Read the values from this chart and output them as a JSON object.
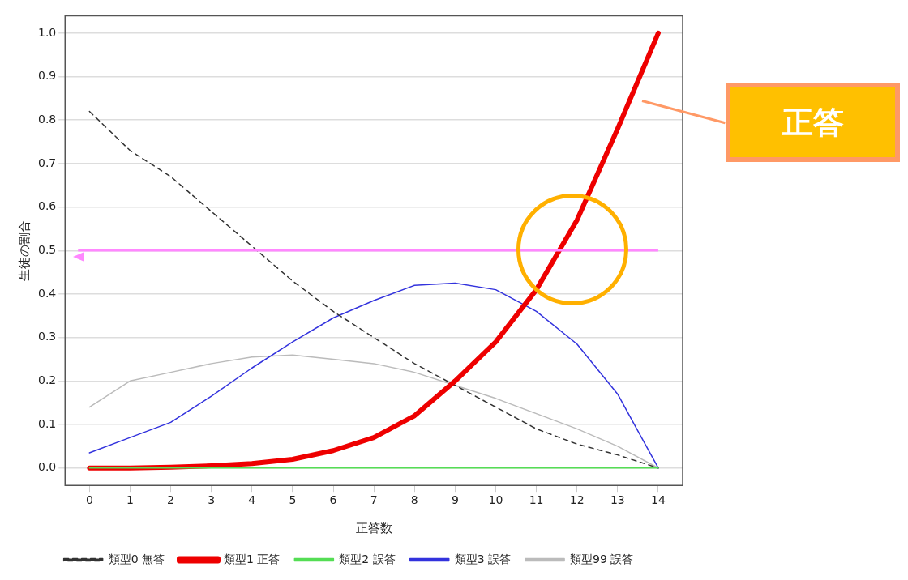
{
  "chart_data": {
    "type": "line",
    "xlabel": "正答数",
    "ylabel": "生徒の割合",
    "x": [
      0,
      1,
      2,
      3,
      4,
      5,
      6,
      7,
      8,
      9,
      10,
      11,
      12,
      13,
      14
    ],
    "xlim": [
      -0.6,
      14.6
    ],
    "xticks": [
      0,
      1,
      2,
      3,
      4,
      5,
      6,
      7,
      8,
      9,
      10,
      11,
      12,
      13,
      14
    ],
    "ylim": [
      -0.04,
      1.04
    ],
    "yticks": [
      {
        "value": 0,
        "label": "0.0"
      },
      {
        "value": 0.1,
        "label": "0.1"
      },
      {
        "value": 0.2,
        "label": "0.2"
      },
      {
        "value": 0.3,
        "label": "0.3"
      },
      {
        "value": 0.4,
        "label": "0.4"
      },
      {
        "value": 0.5,
        "label": "0.5"
      },
      {
        "value": 0.6,
        "label": "0.6"
      },
      {
        "value": 0.7,
        "label": "0.7"
      },
      {
        "value": 0.8,
        "label": "0.8"
      },
      {
        "value": 0.9,
        "label": "0.9"
      },
      {
        "value": 1,
        "label": "1.0"
      }
    ],
    "grid": "y",
    "legend": "bottom",
    "marker": "none",
    "series": [
      {
        "name": "類型0 無答",
        "color": "#333333",
        "line_style": "dashed",
        "values": [
          0.82,
          0.73,
          0.67,
          0.59,
          0.51,
          0.43,
          0.36,
          0.3,
          0.24,
          0.19,
          0.14,
          0.09,
          0.055,
          0.03,
          0
        ]
      },
      {
        "name": "類型1 正答",
        "color": "#ee0000",
        "values": [
          0,
          0,
          0.002,
          0.005,
          0.01,
          0.02,
          0.04,
          0.07,
          0.12,
          0.2,
          0.29,
          0.41,
          0.57,
          0.78,
          1
        ]
      },
      {
        "name": "類型2 誤答",
        "color": "#55dd55",
        "values": [
          0,
          0,
          0,
          0,
          0,
          0,
          0,
          0,
          0,
          0,
          0,
          0,
          0,
          0,
          0
        ]
      },
      {
        "name": "類型3 誤答",
        "color": "#3333dd",
        "values": [
          0.035,
          0.07,
          0.105,
          0.165,
          0.23,
          0.29,
          0.345,
          0.385,
          0.42,
          0.425,
          0.41,
          0.36,
          0.285,
          0.17,
          0
        ]
      },
      {
        "name": "類型99 誤答",
        "color": "#bbbbbb",
        "values": [
          0.14,
          0.2,
          0.22,
          0.24,
          0.255,
          0.26,
          0.25,
          0.24,
          0.22,
          0.19,
          0.16,
          0.125,
          0.09,
          0.05,
          0
        ]
      }
    ],
    "ref_lines": [
      {
        "axis": "y",
        "value": 0.5,
        "color": "#ff88ff"
      }
    ],
    "annotations": [
      "正答"
    ]
  }
}
